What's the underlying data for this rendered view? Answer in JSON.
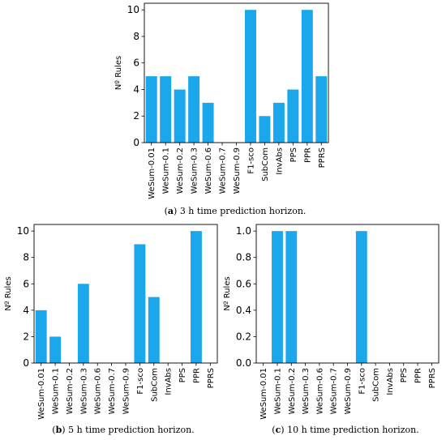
{
  "accent": "#1aa7ec",
  "chart_data": [
    {
      "type": "bar",
      "categories": [
        "WeSum-0.01",
        "WeSum-0.1",
        "WeSum-0.2",
        "WeSum-0.3",
        "WeSum-0.6",
        "WeSum-0.7",
        "WeSum-0.9",
        "F1-sco",
        "SubCom",
        "InvAbs",
        "PPS",
        "PPR",
        "PPRS"
      ],
      "values": [
        5,
        5,
        4,
        5,
        3,
        0,
        0,
        10,
        2,
        3,
        4,
        10,
        5
      ],
      "ylabel": "Nº Rules",
      "ylim": [
        0,
        10.5
      ],
      "yticks": [
        0,
        2,
        4,
        6,
        8,
        10
      ],
      "ytick_labels": [
        "0",
        "2",
        "4",
        "6",
        "8",
        "10"
      ],
      "caption_letter": "a",
      "caption_text": "3 h time prediction horizon."
    },
    {
      "type": "bar",
      "categories": [
        "WeSum-0.01",
        "WeSum-0.1",
        "WeSum-0.2",
        "WeSum-0.3",
        "WeSum-0.6",
        "WeSum-0.7",
        "WeSum-0.9",
        "F1-sco",
        "SubCom",
        "InvAbs",
        "PPS",
        "PPR",
        "PPRS"
      ],
      "values": [
        4,
        2,
        0,
        6,
        0,
        0,
        0,
        9,
        5,
        0,
        0,
        10,
        0
      ],
      "ylabel": "Nº Rules",
      "ylim": [
        0,
        10.5
      ],
      "yticks": [
        0,
        2,
        4,
        6,
        8,
        10
      ],
      "ytick_labels": [
        "0",
        "2",
        "4",
        "6",
        "8",
        "10"
      ],
      "caption_letter": "b",
      "caption_text": "5 h time prediction horizon."
    },
    {
      "type": "bar",
      "categories": [
        "WeSum-0.01",
        "WeSum-0.1",
        "WeSum-0.2",
        "WeSum-0.3",
        "WeSum-0.6",
        "WeSum-0.7",
        "WeSum-0.9",
        "F1-sco",
        "SubCom",
        "InvAbs",
        "PPS",
        "PPR",
        "PPRS"
      ],
      "values": [
        0,
        1,
        1,
        0,
        0,
        0,
        0,
        1,
        0,
        0,
        0,
        0,
        0
      ],
      "ylabel": "Nº Rules",
      "ylim": [
        0,
        1.05
      ],
      "yticks": [
        0,
        0.2,
        0.4,
        0.6,
        0.8,
        1.0
      ],
      "ytick_labels": [
        "0.0",
        "0.2",
        "0.4",
        "0.6",
        "0.8",
        "1.0"
      ],
      "caption_letter": "c",
      "caption_text": "10 h time prediction horizon."
    }
  ]
}
